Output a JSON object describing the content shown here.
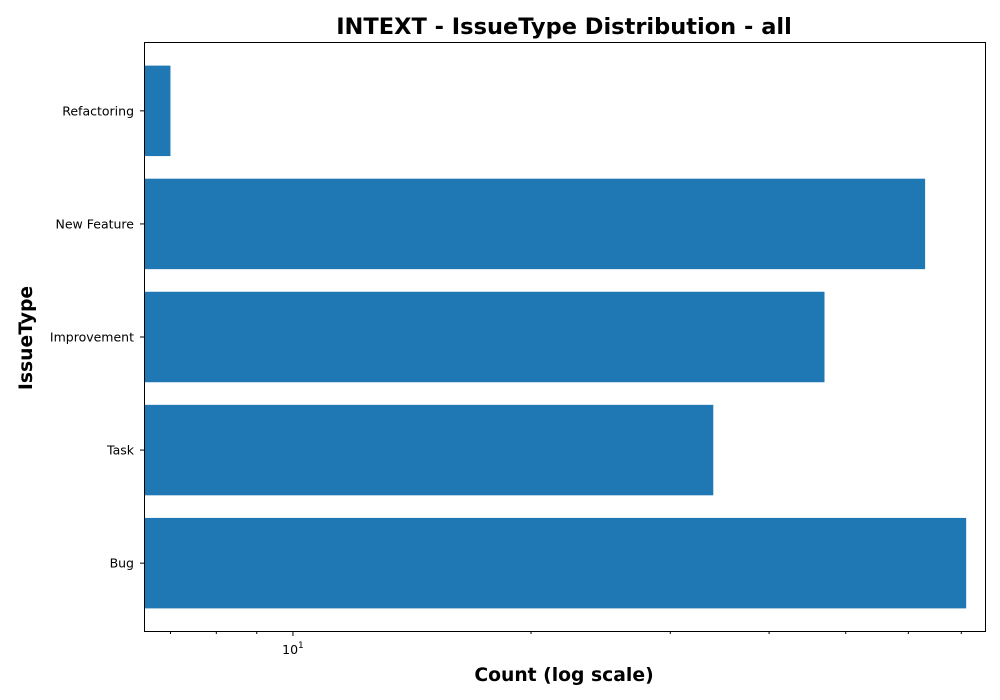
{
  "chart_data": {
    "type": "bar",
    "orientation": "horizontal",
    "title": "INTEXT - IssueType Distribution - all",
    "xlabel": "Count (log scale)",
    "ylabel": "IssueType",
    "x_scale": "log",
    "xlim": [
      6.5,
      75
    ],
    "x_tick_base": "10",
    "x_tick_exponent": "1",
    "x_major_ticks": [
      10
    ],
    "x_minor_ticks": [
      7,
      8,
      9,
      20,
      30,
      40,
      50,
      60,
      70
    ],
    "categories": [
      "Bug",
      "Task",
      "Improvement",
      "New Feature",
      "Refactoring"
    ],
    "values": [
      71,
      34,
      47,
      63,
      7
    ],
    "bar_color": "#1f77b4",
    "grid": false,
    "legend": "none"
  }
}
